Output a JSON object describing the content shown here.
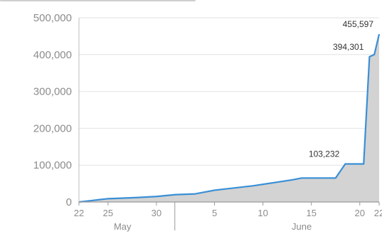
{
  "chart_data": {
    "type": "area",
    "title": "",
    "xlabel": "",
    "ylabel": "",
    "ylim": [
      0,
      500000
    ],
    "yticks": [
      {
        "value": 0,
        "label": "0"
      },
      {
        "value": 100000,
        "label": "100,000"
      },
      {
        "value": 200000,
        "label": "200,000"
      },
      {
        "value": 300000,
        "label": "300,000"
      },
      {
        "value": 400000,
        "label": "400,000"
      },
      {
        "value": 500000,
        "label": "500,000"
      }
    ],
    "x_day_range": [
      22,
      53
    ],
    "xticks": [
      {
        "day": 22,
        "label": "22"
      },
      {
        "day": 25,
        "label": "25"
      },
      {
        "day": 30,
        "label": "30"
      },
      {
        "day": 36,
        "label": "5"
      },
      {
        "day": 41,
        "label": "10"
      },
      {
        "day": 46,
        "label": "15"
      },
      {
        "day": 51,
        "label": "20"
      },
      {
        "day": 53,
        "label": "22"
      }
    ],
    "month_labels": [
      {
        "day": 26.5,
        "label": "May"
      },
      {
        "day": 45,
        "label": "June"
      }
    ],
    "month_divider_day": 31.9,
    "grid": true,
    "series": [
      {
        "color": "#3a8fd6",
        "points": [
          [
            22,
            0
          ],
          [
            24,
            6000
          ],
          [
            25,
            9000
          ],
          [
            28,
            12000
          ],
          [
            30,
            15000
          ],
          [
            32,
            20000
          ],
          [
            34,
            22000
          ],
          [
            36,
            32000
          ],
          [
            38,
            38000
          ],
          [
            40,
            44000
          ],
          [
            42,
            52000
          ],
          [
            44,
            60000
          ],
          [
            45,
            65000
          ],
          [
            47,
            65000
          ],
          [
            48.5,
            65000
          ],
          [
            49.5,
            103232
          ],
          [
            51.4,
            103232
          ],
          [
            52.0,
            394301
          ],
          [
            52.5,
            400000
          ],
          [
            53.0,
            455597
          ]
        ]
      }
    ],
    "annotations": [
      {
        "day": 49.5,
        "value": 103232,
        "label": "103,232"
      },
      {
        "day": 52.0,
        "value": 394301,
        "label": "394,301"
      },
      {
        "day": 53.0,
        "value": 455597,
        "label": "455,597"
      }
    ]
  }
}
